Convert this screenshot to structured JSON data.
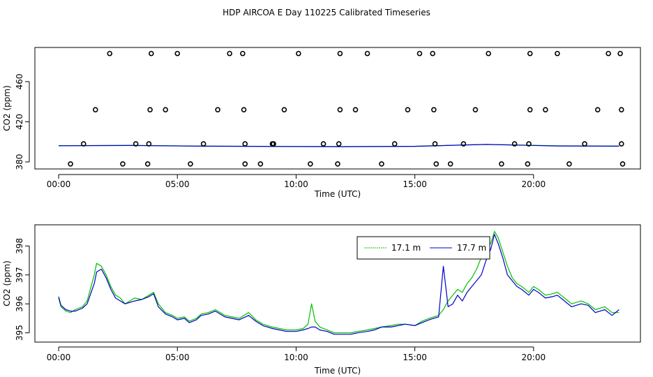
{
  "title": "HDP AIRCOA E  Day 110225  Calibrated Timeseries",
  "colors": {
    "axis": "#000000",
    "series_green": "#00c000",
    "series_blue": "#0000c8",
    "background": "#ffffff"
  },
  "chart_data": [
    {
      "type": "scatter+line",
      "xlabel": "Time (UTC)",
      "ylabel": "CO2 (ppm)",
      "xlim": [
        -1.0,
        24.5
      ],
      "ylim": [
        373,
        494
      ],
      "x_ticks": [
        0,
        5,
        10,
        15,
        20
      ],
      "x_tick_labels": [
        "00:00",
        "05:00",
        "10:00",
        "15:00",
        "20:00"
      ],
      "y_ticks": [
        380,
        420,
        460
      ],
      "y_tick_labels": [
        "380",
        "420",
        "460"
      ],
      "calibration_points": {
        "x": [
          0.5,
          2.7,
          3.75,
          5.55,
          7.85,
          8.5,
          10.6,
          11.75,
          13.6,
          15.9,
          16.5,
          18.65,
          19.75,
          21.5,
          23.75,
          1.05,
          3.25,
          3.8,
          6.1,
          7.85,
          9.0,
          9.05,
          11.15,
          11.8,
          14.15,
          15.85,
          17.05,
          19.2,
          19.8,
          22.15,
          23.7,
          1.55,
          3.85,
          4.5,
          6.7,
          7.8,
          9.5,
          11.85,
          12.5,
          14.7,
          15.8,
          17.55,
          19.85,
          20.5,
          22.7,
          23.7,
          2.15,
          3.9,
          5.0,
          7.2,
          7.75,
          10.1,
          11.85,
          13.0,
          15.2,
          15.75,
          18.1,
          19.85,
          21.0,
          23.15,
          23.65
        ],
        "y": [
          378,
          378,
          378,
          378,
          378,
          378,
          378,
          378,
          378,
          378,
          378,
          378,
          378,
          378,
          378,
          398,
          398,
          398,
          398,
          398,
          398,
          398,
          398,
          398,
          398,
          398,
          398,
          398,
          398,
          398,
          398,
          432,
          432,
          432,
          432,
          432,
          432,
          432,
          432,
          432,
          432,
          432,
          432,
          432,
          432,
          432,
          488,
          488,
          488,
          488,
          488,
          488,
          488,
          488,
          488,
          488,
          488,
          488,
          488,
          488,
          488
        ]
      },
      "series": [
        {
          "name": "17.1 m",
          "color": "#00c000",
          "x": [
            0,
            3,
            6,
            9,
            12,
            15,
            18,
            21,
            23.6
          ],
          "y": [
            396.2,
            396.5,
            395.8,
            395.5,
            395.3,
            395.6,
            397.5,
            396.0,
            395.8
          ]
        },
        {
          "name": "17.7 m",
          "color": "#0000c8",
          "x": [
            0,
            3,
            6,
            9,
            12,
            15,
            18,
            21,
            23.6
          ],
          "y": [
            396.1,
            396.4,
            395.7,
            395.4,
            395.2,
            395.5,
            397.4,
            395.9,
            395.7
          ]
        }
      ]
    },
    {
      "type": "line",
      "xlabel": "Time (UTC)",
      "ylabel": "CO2 (ppm)",
      "xlim": [
        -1.0,
        24.5
      ],
      "ylim": [
        394.68,
        398.73
      ],
      "x_ticks": [
        0,
        5,
        10,
        15,
        20
      ],
      "x_tick_labels": [
        "00:00",
        "05:00",
        "10:00",
        "15:00",
        "20:00"
      ],
      "y_ticks": [
        395,
        396,
        397,
        398
      ],
      "y_tick_labels": [
        "395",
        "396",
        "397",
        "398"
      ],
      "legend": {
        "position": "top-right",
        "entries": [
          "17.1 m",
          "17.7 m"
        ]
      },
      "series": [
        {
          "name": "17.1 m",
          "color": "#00c000",
          "x": [
            0.0,
            0.1,
            0.3,
            0.5,
            0.7,
            1.0,
            1.2,
            1.5,
            1.6,
            1.8,
            2.0,
            2.2,
            2.4,
            2.6,
            2.8,
            3.0,
            3.2,
            3.5,
            3.8,
            4.0,
            4.2,
            4.5,
            4.8,
            5.0,
            5.3,
            5.5,
            5.8,
            6.0,
            6.3,
            6.6,
            7.0,
            7.3,
            7.6,
            8.0,
            8.3,
            8.6,
            9.0,
            9.3,
            9.6,
            10.0,
            10.3,
            10.5,
            10.65,
            10.8,
            11.0,
            11.3,
            11.6,
            12.0,
            12.3,
            12.6,
            13.0,
            13.3,
            13.6,
            14.0,
            14.3,
            14.6,
            15.0,
            15.3,
            15.6,
            16.0,
            16.2,
            16.4,
            16.6,
            16.8,
            17.0,
            17.2,
            17.4,
            17.6,
            17.8,
            18.0,
            18.2,
            18.35,
            18.5,
            18.7,
            18.9,
            19.1,
            19.3,
            19.5,
            19.8,
            20.0,
            20.2,
            20.5,
            20.8,
            21.0,
            21.3,
            21.6,
            22.0,
            22.3,
            22.6,
            23.0,
            23.3,
            23.6
          ],
          "y": [
            396.2,
            395.9,
            395.75,
            395.7,
            395.8,
            395.9,
            396.1,
            397.0,
            397.4,
            397.3,
            397.0,
            396.6,
            396.3,
            396.2,
            396.0,
            396.1,
            396.2,
            396.15,
            396.3,
            396.4,
            396.0,
            395.7,
            395.6,
            395.5,
            395.55,
            395.4,
            395.5,
            395.65,
            395.7,
            395.8,
            395.6,
            395.55,
            395.5,
            395.7,
            395.45,
            395.3,
            395.2,
            395.15,
            395.1,
            395.1,
            395.15,
            395.3,
            396.0,
            395.4,
            395.2,
            395.1,
            395.0,
            395.0,
            395.0,
            395.05,
            395.1,
            395.15,
            395.2,
            395.25,
            395.3,
            395.3,
            395.25,
            395.4,
            395.5,
            395.6,
            395.8,
            396.1,
            396.3,
            396.5,
            396.4,
            396.7,
            396.9,
            397.2,
            397.6,
            397.9,
            398.1,
            398.5,
            398.3,
            397.8,
            397.3,
            396.9,
            396.7,
            396.6,
            396.4,
            396.6,
            396.5,
            396.3,
            396.35,
            396.4,
            396.2,
            396.0,
            396.1,
            396.0,
            395.8,
            395.9,
            395.7,
            395.7
          ]
        },
        {
          "name": "17.7 m",
          "color": "#0000c8",
          "x": [
            0.0,
            0.1,
            0.3,
            0.5,
            0.7,
            1.0,
            1.2,
            1.5,
            1.6,
            1.8,
            2.0,
            2.2,
            2.4,
            2.6,
            2.8,
            3.0,
            3.2,
            3.5,
            3.8,
            4.0,
            4.2,
            4.5,
            4.8,
            5.0,
            5.3,
            5.5,
            5.8,
            6.0,
            6.3,
            6.6,
            7.0,
            7.3,
            7.6,
            8.0,
            8.3,
            8.6,
            9.0,
            9.3,
            9.6,
            10.0,
            10.3,
            10.5,
            10.65,
            10.8,
            11.0,
            11.3,
            11.6,
            12.0,
            12.3,
            12.6,
            13.0,
            13.3,
            13.6,
            14.0,
            14.3,
            14.6,
            15.0,
            15.3,
            15.6,
            16.0,
            16.2,
            16.4,
            16.6,
            16.8,
            17.0,
            17.2,
            17.4,
            17.6,
            17.8,
            18.0,
            18.2,
            18.35,
            18.5,
            18.7,
            18.9,
            19.1,
            19.3,
            19.5,
            19.8,
            20.0,
            20.2,
            20.5,
            20.8,
            21.0,
            21.3,
            21.6,
            22.0,
            22.3,
            22.6,
            23.0,
            23.3,
            23.6
          ],
          "y": [
            396.25,
            395.95,
            395.8,
            395.75,
            395.75,
            395.85,
            396.0,
            396.7,
            397.1,
            397.2,
            396.9,
            396.5,
            396.2,
            396.1,
            396.0,
            396.05,
            396.1,
            396.15,
            396.25,
            396.35,
            395.9,
            395.65,
            395.55,
            395.45,
            395.5,
            395.35,
            395.45,
            395.6,
            395.65,
            395.75,
            395.55,
            395.5,
            395.45,
            395.6,
            395.4,
            395.25,
            395.15,
            395.1,
            395.05,
            395.05,
            395.1,
            395.15,
            395.2,
            395.2,
            395.1,
            395.05,
            394.95,
            394.95,
            394.95,
            395.0,
            395.05,
            395.1,
            395.2,
            395.2,
            395.25,
            395.3,
            395.25,
            395.35,
            395.45,
            395.55,
            397.3,
            395.9,
            396.0,
            396.3,
            396.1,
            396.4,
            396.6,
            396.8,
            397.0,
            397.5,
            397.9,
            398.4,
            398.1,
            397.6,
            397.0,
            396.8,
            396.6,
            396.5,
            396.3,
            396.5,
            396.4,
            396.2,
            396.25,
            396.3,
            396.1,
            395.9,
            396.0,
            395.95,
            395.7,
            395.8,
            395.6,
            395.8
          ]
        }
      ]
    }
  ]
}
